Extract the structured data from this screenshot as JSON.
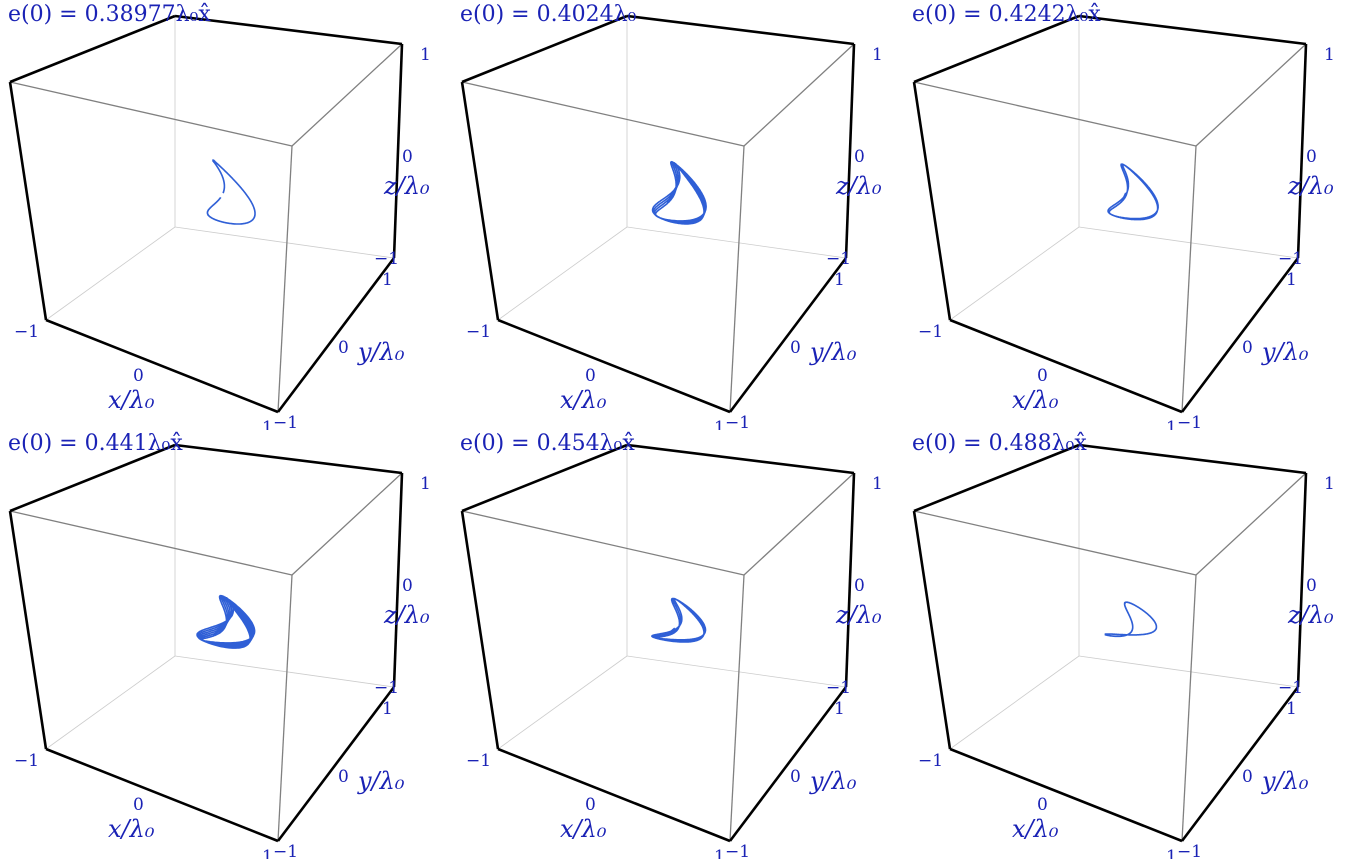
{
  "chart_data": [
    {
      "type": "line",
      "subtype": "3d-trajectory",
      "title": "e(0) = 0.38977λ₀x̂",
      "xlabel": "x/λ₀",
      "ylabel": "y/λ₀",
      "zlabel": "z/λ₀",
      "xlim": [
        -1,
        1
      ],
      "ylim": [
        -1,
        1
      ],
      "zlim": [
        -1,
        1
      ],
      "x_ticks": [
        "−1",
        "0",
        "1"
      ],
      "y_ticks": [
        "1",
        "0",
        "−1"
      ],
      "z_ticks": [
        "1",
        "0",
        "−1"
      ],
      "trajectory": {
        "freq_ratio": [
          1,
          2
        ],
        "phase": 1.2,
        "amp": [
          0.3,
          0.22,
          0.3
        ],
        "loops": 1,
        "open_loop": true
      },
      "line_color": "#2f5fd6"
    },
    {
      "type": "line",
      "subtype": "3d-trajectory",
      "title": "e(0) = 0.4024λ₀",
      "xlabel": "x/λ₀",
      "ylabel": "y/λ₀",
      "zlabel": "z/λ₀",
      "xlim": [
        -1,
        1
      ],
      "ylim": [
        -1,
        1
      ],
      "zlim": [
        -1,
        1
      ],
      "x_ticks": [
        "−1",
        "0",
        "1"
      ],
      "y_ticks": [
        "1",
        "0",
        "−1"
      ],
      "z_ticks": [
        "1",
        "0",
        "−1"
      ],
      "trajectory": {
        "freq_ratio": [
          1,
          2
        ],
        "phase": 0.6,
        "amp": [
          0.33,
          0.2,
          0.25
        ],
        "loops": 4,
        "open_loop": false
      },
      "line_color": "#2f5fd6"
    },
    {
      "type": "line",
      "subtype": "3d-trajectory",
      "title": "e(0) = 0.4242λ₀x̂",
      "xlabel": "x/λ₀",
      "ylabel": "y/λ₀",
      "zlabel": "z/λ₀",
      "xlim": [
        -1,
        1
      ],
      "ylim": [
        -1,
        1
      ],
      "zlim": [
        -1,
        1
      ],
      "x_ticks": [
        "−1",
        "0",
        "1"
      ],
      "y_ticks": [
        "1",
        "0",
        "−1"
      ],
      "z_ticks": [
        "1",
        "0",
        "−1"
      ],
      "trajectory": {
        "freq_ratio": [
          1,
          2
        ],
        "phase": 0.8,
        "amp": [
          0.32,
          0.2,
          0.24
        ],
        "loops": 2,
        "open_loop": false
      },
      "line_color": "#2f5fd6"
    },
    {
      "type": "line",
      "subtype": "3d-trajectory",
      "title": "e(0) = 0.441λ₀x̂",
      "xlabel": "x/λ₀",
      "ylabel": "y/λ₀",
      "zlabel": "z/λ₀",
      "xlim": [
        -1,
        1
      ],
      "ylim": [
        -1,
        1
      ],
      "zlim": [
        -1,
        1
      ],
      "x_ticks": [
        "−1",
        "0",
        "1"
      ],
      "y_ticks": [
        "1",
        "0",
        "−1"
      ],
      "z_ticks": [
        "1",
        "0",
        "−1"
      ],
      "trajectory": {
        "freq_ratio": [
          1,
          2
        ],
        "phase": 0.4,
        "amp": [
          0.33,
          0.22,
          0.18
        ],
        "loops": 6,
        "open_loop": false
      },
      "line_color": "#2f5fd6"
    },
    {
      "type": "line",
      "subtype": "3d-trajectory",
      "title": "e(0) = 0.454λ₀x̂",
      "xlabel": "x/λ₀",
      "ylabel": "y/λ₀",
      "zlabel": "z/λ₀",
      "xlim": [
        -1,
        1
      ],
      "ylim": [
        -1,
        1
      ],
      "zlim": [
        -1,
        1
      ],
      "x_ticks": [
        "−1",
        "0",
        "1"
      ],
      "y_ticks": [
        "1",
        "0",
        "−1"
      ],
      "z_ticks": [
        "1",
        "0",
        "−1"
      ],
      "trajectory": {
        "freq_ratio": [
          1,
          2
        ],
        "phase": 0.35,
        "amp": [
          0.31,
          0.22,
          0.15
        ],
        "loops": 3,
        "open_loop": false
      },
      "line_color": "#2f5fd6"
    },
    {
      "type": "line",
      "subtype": "3d-trajectory",
      "title": "e(0) = 0.488λ₀x̂",
      "xlabel": "x/λ₀",
      "ylabel": "y/λ₀",
      "zlabel": "z/λ₀",
      "xlim": [
        -1,
        1
      ],
      "ylim": [
        -1,
        1
      ],
      "zlim": [
        -1,
        1
      ],
      "x_ticks": [
        "−1",
        "0",
        "1"
      ],
      "y_ticks": [
        "1",
        "0",
        "−1"
      ],
      "z_ticks": [
        "1",
        "0",
        "−1"
      ],
      "trajectory": {
        "freq_ratio": [
          1,
          2
        ],
        "phase": 0.2,
        "amp": [
          0.3,
          0.22,
          0.1
        ],
        "loops": 1,
        "open_loop": false
      },
      "line_color": "#2f5fd6"
    }
  ],
  "colors": {
    "text": "#1a22b5",
    "box_front": "#000000",
    "box_back": "#808080",
    "grid_faint": "#cccccc",
    "curve": "#2f5fd6"
  }
}
